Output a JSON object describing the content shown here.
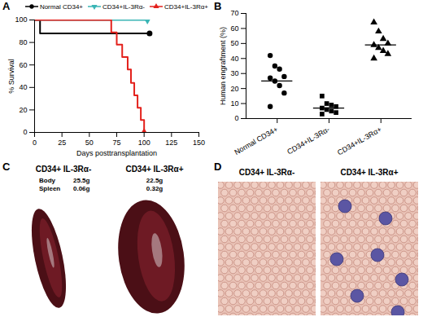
{
  "chart_data": [
    {
      "panel": "A",
      "type": "line",
      "xlabel": "Days posttransplantation",
      "ylabel": "% Survival",
      "xlim": [
        0,
        150
      ],
      "xticks": [
        0,
        25,
        50,
        75,
        100,
        125,
        150
      ],
      "ylim": [
        0,
        100
      ],
      "yticks": [
        0,
        20,
        40,
        60,
        80,
        100
      ],
      "legend": "top-right",
      "series": [
        {
          "name": "Normal CD34+",
          "color": "#000000",
          "marker": "circle",
          "x": [
            0,
            5,
            105
          ],
          "values": [
            100,
            88,
            88
          ]
        },
        {
          "name": "CD34+IL-3Rα-",
          "color": "#3ab5b5",
          "marker": "triangle-down",
          "x": [
            0,
            103
          ],
          "values": [
            100,
            100
          ]
        },
        {
          "name": "CD34+IL-3Rα+",
          "color": "#e3211c",
          "marker": "triangle-up",
          "x": [
            0,
            70,
            75,
            80,
            85,
            88,
            91,
            94,
            97,
            100
          ],
          "values": [
            100,
            89,
            78,
            67,
            56,
            44,
            33,
            22,
            11,
            0
          ]
        }
      ]
    },
    {
      "panel": "B",
      "type": "scatter",
      "ylabel": "Human engraftment (%)",
      "categories": [
        "Normal CD34+",
        "CD34+IL-3Rα-",
        "CD34+IL-3Rα+"
      ],
      "ylim": [
        0,
        70
      ],
      "yticks": [
        0,
        10,
        20,
        30,
        40,
        50,
        60,
        70
      ],
      "color": "#000000",
      "markers": [
        "circle",
        "square",
        "triangle-up"
      ],
      "values": [
        [
          42,
          35,
          33,
          28,
          27,
          25,
          22,
          17,
          8
        ],
        [
          15,
          10,
          9,
          8,
          7,
          6,
          5,
          4,
          3
        ],
        [
          64,
          58,
          53,
          50,
          49,
          47,
          45,
          43,
          40
        ]
      ],
      "medians": [
        25,
        7,
        49
      ]
    }
  ],
  "panels": [
    {
      "panel": "C",
      "captions": [
        "CD34+ IL-3Rα-",
        "CD34+ IL-3Rα+"
      ],
      "rows": [
        {
          "label": "Body",
          "values": [
            "25.5g",
            "22.5g"
          ]
        },
        {
          "label": "Spleen",
          "values": [
            "0.06g",
            "0.32g"
          ]
        }
      ]
    },
    {
      "panel": "D",
      "captions": [
        "CD34+ IL-3Rα-",
        "CD34+ IL-3Rα+"
      ]
    }
  ]
}
